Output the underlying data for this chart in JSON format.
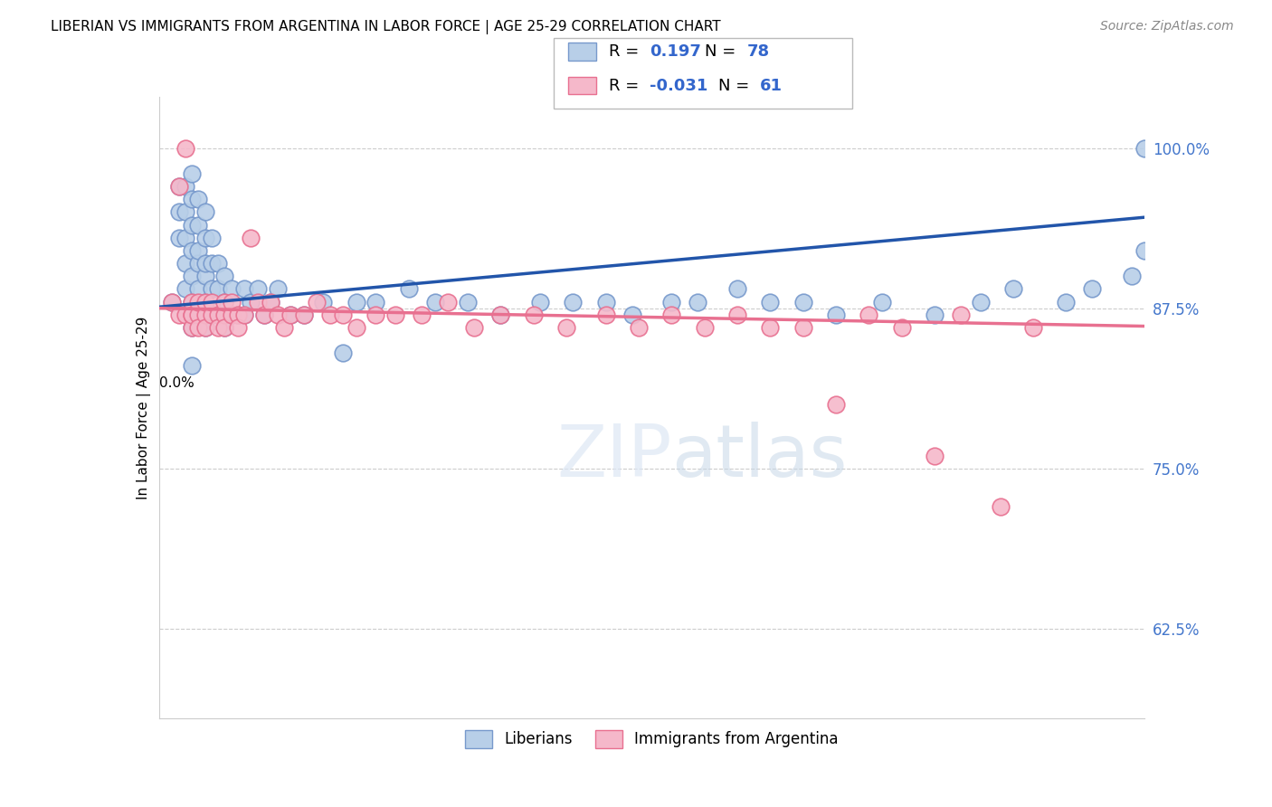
{
  "title": "LIBERIAN VS IMMIGRANTS FROM ARGENTINA IN LABOR FORCE | AGE 25-29 CORRELATION CHART",
  "source": "Source: ZipAtlas.com",
  "ylabel": "In Labor Force | Age 25-29",
  "liberian_line_color": "#2255aa",
  "argentina_line_color": "#e87090",
  "xmin": 0.0,
  "xmax": 0.15,
  "ymin": 0.555,
  "ymax": 1.04,
  "ytick_vals": [
    0.625,
    0.75,
    0.875,
    1.0
  ],
  "ytick_labels": [
    "62.5%",
    "75.0%",
    "87.5%",
    "100.0%"
  ],
  "liberian_x": [
    0.002,
    0.003,
    0.003,
    0.003,
    0.004,
    0.004,
    0.004,
    0.004,
    0.004,
    0.005,
    0.005,
    0.005,
    0.005,
    0.005,
    0.005,
    0.005,
    0.005,
    0.006,
    0.006,
    0.006,
    0.006,
    0.006,
    0.006,
    0.007,
    0.007,
    0.007,
    0.007,
    0.007,
    0.007,
    0.008,
    0.008,
    0.008,
    0.008,
    0.009,
    0.009,
    0.009,
    0.01,
    0.01,
    0.01,
    0.011,
    0.011,
    0.012,
    0.013,
    0.013,
    0.014,
    0.015,
    0.016,
    0.017,
    0.018,
    0.02,
    0.022,
    0.025,
    0.028,
    0.03,
    0.033,
    0.038,
    0.042,
    0.047,
    0.052,
    0.058,
    0.063,
    0.068,
    0.072,
    0.078,
    0.082,
    0.088,
    0.093,
    0.098,
    0.103,
    0.11,
    0.118,
    0.125,
    0.13,
    0.138,
    0.142,
    0.148,
    0.15,
    0.15
  ],
  "liberian_y": [
    0.88,
    0.93,
    0.95,
    0.97,
    0.89,
    0.91,
    0.93,
    0.95,
    0.97,
    0.83,
    0.86,
    0.88,
    0.9,
    0.92,
    0.94,
    0.96,
    0.98,
    0.87,
    0.89,
    0.91,
    0.92,
    0.94,
    0.96,
    0.86,
    0.88,
    0.9,
    0.91,
    0.93,
    0.95,
    0.87,
    0.89,
    0.91,
    0.93,
    0.87,
    0.89,
    0.91,
    0.86,
    0.88,
    0.9,
    0.87,
    0.89,
    0.87,
    0.87,
    0.89,
    0.88,
    0.89,
    0.87,
    0.88,
    0.89,
    0.87,
    0.87,
    0.88,
    0.84,
    0.88,
    0.88,
    0.89,
    0.88,
    0.88,
    0.87,
    0.88,
    0.88,
    0.88,
    0.87,
    0.88,
    0.88,
    0.89,
    0.88,
    0.88,
    0.87,
    0.88,
    0.87,
    0.88,
    0.89,
    0.88,
    0.89,
    0.9,
    0.92,
    1.0
  ],
  "argentina_x": [
    0.002,
    0.003,
    0.003,
    0.004,
    0.004,
    0.005,
    0.005,
    0.005,
    0.005,
    0.006,
    0.006,
    0.006,
    0.007,
    0.007,
    0.007,
    0.008,
    0.008,
    0.009,
    0.009,
    0.01,
    0.01,
    0.01,
    0.011,
    0.011,
    0.012,
    0.012,
    0.013,
    0.014,
    0.015,
    0.016,
    0.017,
    0.018,
    0.019,
    0.02,
    0.022,
    0.024,
    0.026,
    0.028,
    0.03,
    0.033,
    0.036,
    0.04,
    0.044,
    0.048,
    0.052,
    0.057,
    0.062,
    0.068,
    0.073,
    0.078,
    0.083,
    0.088,
    0.093,
    0.098,
    0.103,
    0.108,
    0.113,
    0.118,
    0.122,
    0.128,
    0.133
  ],
  "argentina_y": [
    0.88,
    0.87,
    0.97,
    0.87,
    1.0,
    0.87,
    0.88,
    0.86,
    0.87,
    0.87,
    0.88,
    0.86,
    0.87,
    0.88,
    0.86,
    0.87,
    0.88,
    0.87,
    0.86,
    0.87,
    0.88,
    0.86,
    0.87,
    0.88,
    0.87,
    0.86,
    0.87,
    0.93,
    0.88,
    0.87,
    0.88,
    0.87,
    0.86,
    0.87,
    0.87,
    0.88,
    0.87,
    0.87,
    0.86,
    0.87,
    0.87,
    0.87,
    0.88,
    0.86,
    0.87,
    0.87,
    0.86,
    0.87,
    0.86,
    0.87,
    0.86,
    0.87,
    0.86,
    0.86,
    0.8,
    0.87,
    0.86,
    0.76,
    0.87,
    0.72,
    0.86
  ]
}
